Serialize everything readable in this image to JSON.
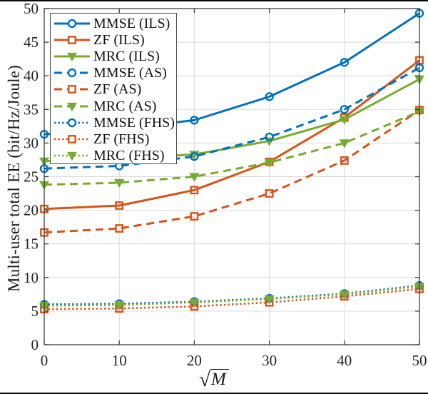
{
  "figure": {
    "xlabel_radical": "√",
    "xlabel_arg": "M"
  },
  "chart_data": {
    "type": "line",
    "title": "",
    "xlabel": "√M",
    "ylabel": "Multi-user total EE (bit/Hz/Joule)",
    "xlim": [
      0,
      50
    ],
    "ylim": [
      0,
      50
    ],
    "xticks": [
      0,
      10,
      20,
      30,
      40,
      50
    ],
    "yticks": [
      0,
      5,
      10,
      15,
      20,
      25,
      30,
      35,
      40,
      45,
      50
    ],
    "grid": true,
    "legend_position": "top-left",
    "x": [
      0,
      10,
      20,
      30,
      40,
      50
    ],
    "series": [
      {
        "name": "MMSE (ILS)",
        "color": "#0072BD",
        "line": "solid",
        "marker": "circle",
        "values": [
          31.3,
          32.1,
          33.4,
          36.9,
          42.0,
          49.3
        ]
      },
      {
        "name": "ZF (ILS)",
        "color": "#D95319",
        "line": "solid",
        "marker": "square",
        "values": [
          20.2,
          20.7,
          23.0,
          27.2,
          33.8,
          42.3
        ]
      },
      {
        "name": "MRC (ILS)",
        "color": "#77AC30",
        "line": "solid",
        "marker": "triangle",
        "values": [
          27.3,
          27.7,
          28.3,
          30.3,
          33.5,
          39.5
        ]
      },
      {
        "name": "MMSE (AS)",
        "color": "#0072BD",
        "line": "dashed",
        "marker": "circle",
        "values": [
          26.2,
          26.6,
          28.0,
          30.9,
          35.0,
          41.2
        ]
      },
      {
        "name": "ZF (AS)",
        "color": "#D95319",
        "line": "dashed",
        "marker": "square",
        "values": [
          16.7,
          17.3,
          19.1,
          22.5,
          27.4,
          34.9
        ]
      },
      {
        "name": "MRC (AS)",
        "color": "#77AC30",
        "line": "dashed",
        "marker": "triangle",
        "values": [
          23.8,
          24.1,
          25.0,
          27.1,
          30.0,
          34.7
        ]
      },
      {
        "name": "MMSE (FHS)",
        "color": "#0072BD",
        "line": "dotted",
        "marker": "circle",
        "values": [
          6.0,
          6.1,
          6.4,
          6.9,
          7.6,
          8.8
        ]
      },
      {
        "name": "ZF (FHS)",
        "color": "#D95319",
        "line": "dotted",
        "marker": "square",
        "values": [
          5.3,
          5.4,
          5.7,
          6.3,
          7.2,
          8.3
        ]
      },
      {
        "name": "MRC (FHS)",
        "color": "#77AC30",
        "line": "dotted",
        "marker": "triangle",
        "values": [
          5.8,
          5.9,
          6.3,
          6.8,
          7.5,
          8.7
        ]
      }
    ]
  }
}
